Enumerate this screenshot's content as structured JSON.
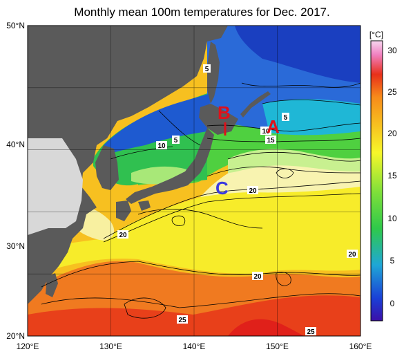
{
  "title": "Monthly mean 100m temperatures for Dec. 2017.",
  "map": {
    "lon_ticks": [
      "120°E",
      "130°E",
      "140°E",
      "150°E",
      "160°E"
    ],
    "lat_ticks": [
      "50°N",
      "40°N",
      "30°N",
      "20°N"
    ],
    "lon_range": [
      120,
      160
    ],
    "lat_range": [
      20,
      50
    ],
    "grid": true
  },
  "colorbar": {
    "unit": "[°C]",
    "ticks": [
      "30",
      "25",
      "20",
      "15",
      "10",
      "5",
      "0"
    ],
    "range": [
      -2,
      32
    ],
    "colors": [
      "#3b0fa8",
      "#1a3fd6",
      "#1fa7d6",
      "#2fc94a",
      "#7fe03a",
      "#f7f72a",
      "#f7c020",
      "#f78a1a",
      "#e8301a",
      "#f080c0",
      "#f8d8f0"
    ]
  },
  "contour_labels": [
    "5",
    "5",
    "10",
    "5",
    "10",
    "15",
    "20",
    "20",
    "20",
    "20",
    "25",
    "25"
  ],
  "markers": [
    {
      "label": "A",
      "color": "#e0101a"
    },
    {
      "label": "B",
      "color": "#e0101a"
    },
    {
      "label": "C",
      "color": "#3a3ae0"
    }
  ],
  "colors": {
    "land": "#5a5a5a",
    "unobserved": "#d8d8d8"
  }
}
